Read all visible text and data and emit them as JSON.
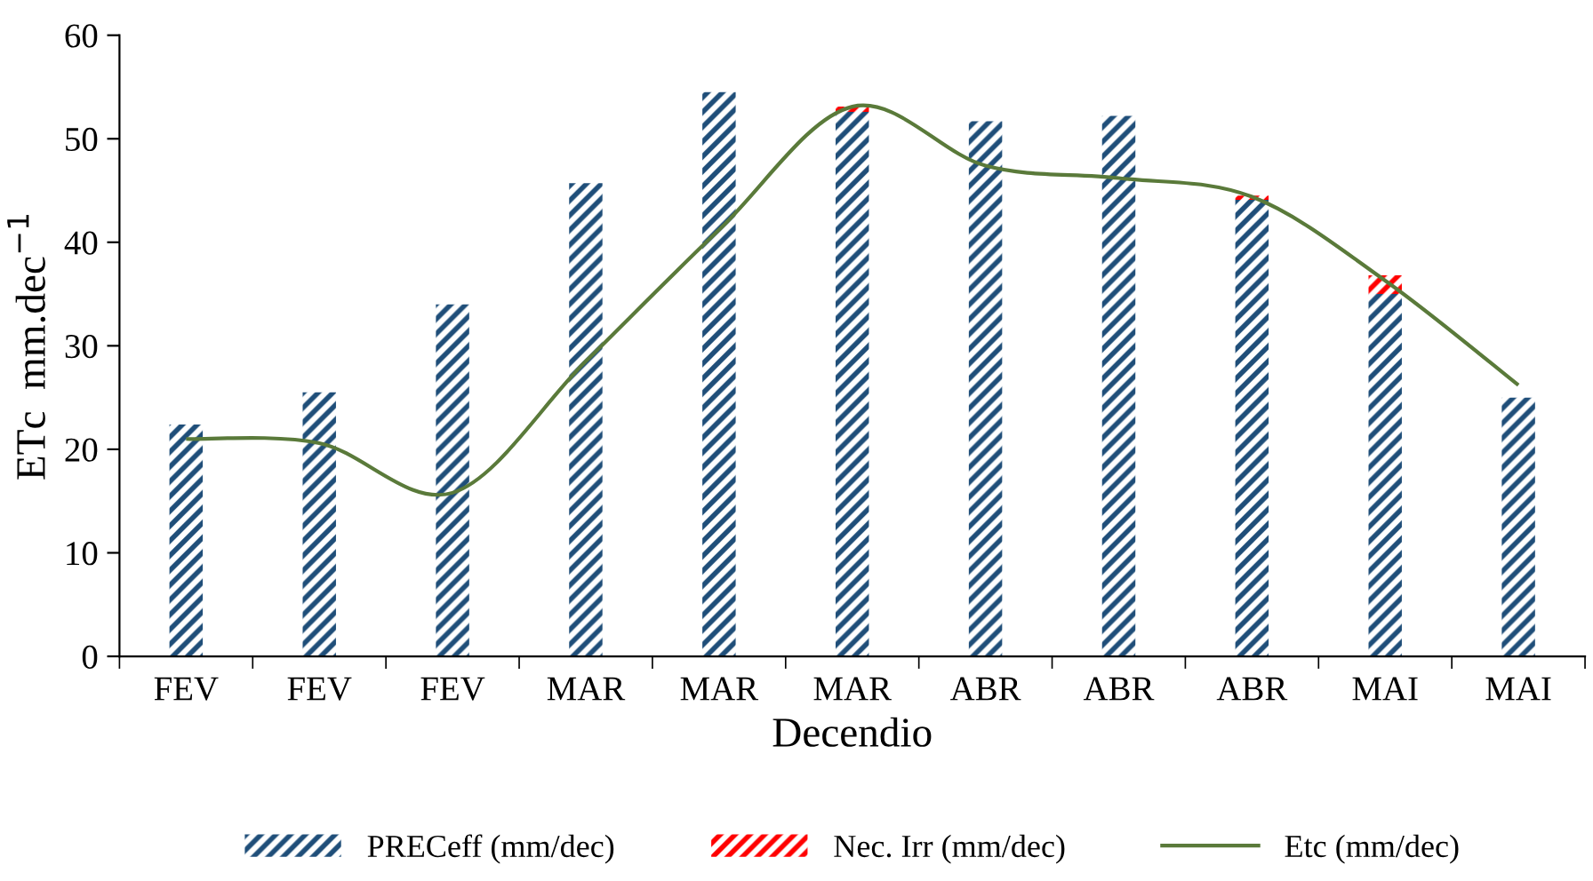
{
  "chart_data": {
    "type": "bar",
    "stacked": true,
    "xlabel": "Decendio",
    "ylabel": "ETc  mm.dec$^{−1}$",
    "categories": [
      "FEV",
      "FEV",
      "FEV",
      "MAR",
      "MAR",
      "MAR",
      "ABR",
      "ABR",
      "ABR",
      "MAI",
      "MAI"
    ],
    "series": [
      {
        "name": "PRECeff (mm/dec)",
        "color": "#1f4e79",
        "values": [
          22.4,
          25.5,
          34.0,
          45.7,
          54.5,
          52.6,
          51.7,
          52.2,
          44.1,
          35.0,
          25.0
        ]
      },
      {
        "name": "Nec. Irr (mm/dec)",
        "color": "#ff0000",
        "values": [
          0,
          0,
          0,
          0,
          0,
          0.5,
          0,
          0,
          0.4,
          1.8,
          0
        ]
      },
      {
        "name": "Etc (mm/dec)",
        "type": "line",
        "color": "#5a7a3a",
        "values": [
          21.0,
          20.6,
          15.8,
          28.5,
          41.2,
          53.1,
          47.4,
          46.2,
          44.4,
          36.3,
          26.2
        ]
      }
    ],
    "ylim": [
      0,
      60
    ],
    "yticks": [
      0,
      10,
      20,
      30,
      40,
      50,
      60
    ],
    "grid": false,
    "legend": "bottom",
    "marker": "none",
    "line_style": "solid"
  }
}
